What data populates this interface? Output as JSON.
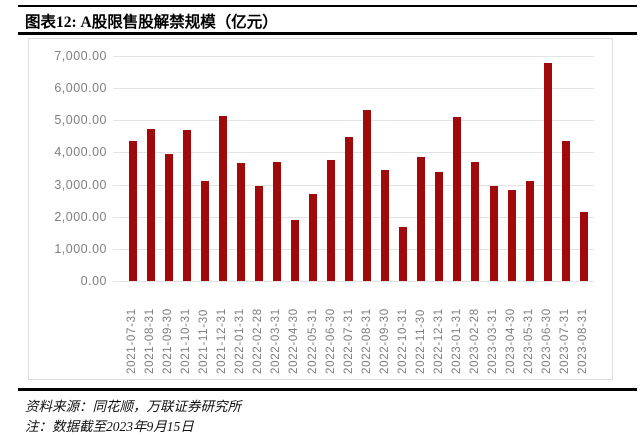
{
  "header": {
    "title": "图表12: A股限售股解禁规模（亿元）"
  },
  "chart_data": {
    "type": "bar",
    "title": "A股限售股解禁规模（亿元）",
    "categories": [
      "2021-07-31",
      "2021-08-31",
      "2021-09-30",
      "2021-10-31",
      "2021-11-30",
      "2021-12-31",
      "2022-01-31",
      "2022-02-28",
      "2022-03-31",
      "2022-04-30",
      "2022-05-31",
      "2022-06-30",
      "2022-07-31",
      "2022-08-31",
      "2022-09-30",
      "2022-10-31",
      "2022-11-30",
      "2022-12-31",
      "2023-01-31",
      "2023-02-28",
      "2023-03-31",
      "2023-04-30",
      "2023-05-31",
      "2023-06-30",
      "2023-07-31",
      "2023-08-31"
    ],
    "values": [
      4370,
      4720,
      3950,
      4690,
      3120,
      5140,
      3680,
      2970,
      3700,
      1910,
      2720,
      3750,
      4480,
      5310,
      3450,
      1680,
      3860,
      3380,
      5090,
      3700,
      2950,
      2820,
      3110,
      6780,
      4370,
      2140
    ],
    "xlabel": "",
    "ylabel": "",
    "ylim": [
      0,
      7000
    ],
    "ytick_step": 1000,
    "ytick_labels": [
      "0.00",
      "1,000.00",
      "2,000.00",
      "3,000.00",
      "4,000.00",
      "5,000.00",
      "6,000.00",
      "7,000.00"
    ],
    "grid": "horizontal",
    "legend_position": "none",
    "bar_color": "#a00a0a",
    "gridline_color": "#e3e3e3",
    "axis_label_color": "#7f7f7f"
  },
  "footer": {
    "source": "资料来源：同花顺，万联证券研究所",
    "note": "注：数据截至2023年9月15日"
  }
}
